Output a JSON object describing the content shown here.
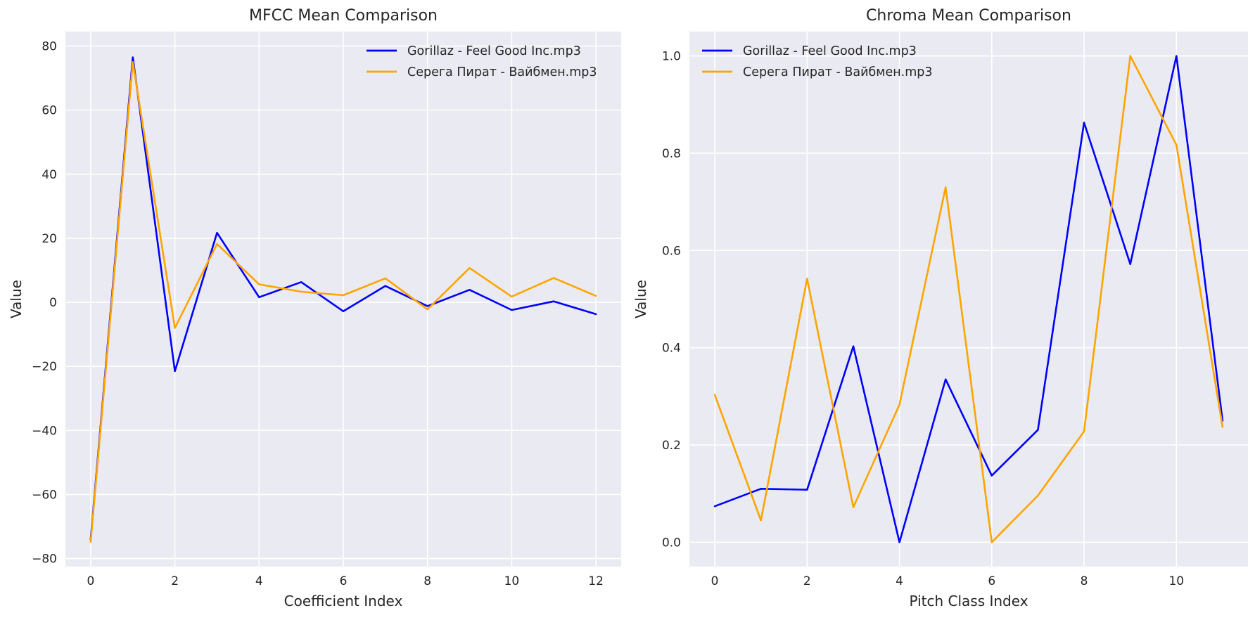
{
  "chart_data": [
    {
      "type": "line",
      "title": "MFCC Mean Comparison",
      "xlabel": "Coefficient Index",
      "ylabel": "Value",
      "xlim": [
        -0.6,
        12.6
      ],
      "ylim": [
        -82.5,
        84.5
      ],
      "xticks": [
        0,
        2,
        4,
        6,
        8,
        10,
        12
      ],
      "xtick_labels": [
        "0",
        "2",
        "4",
        "6",
        "8",
        "10",
        "12"
      ],
      "yticks": [
        -80,
        -60,
        -40,
        -20,
        0,
        20,
        40,
        60,
        80
      ],
      "ytick_labels": [
        "−80",
        "−60",
        "−40",
        "−20",
        "0",
        "20",
        "40",
        "60",
        "80"
      ],
      "grid": true,
      "legend_position": "top-right",
      "x": [
        0,
        1,
        2,
        3,
        4,
        5,
        6,
        7,
        8,
        9,
        10,
        11,
        12
      ],
      "series": [
        {
          "name": "Gorillaz - Feel Good Inc.mp3",
          "color": "#0000ff",
          "values": [
            -74,
            76.5,
            -21.5,
            21.7,
            1.6,
            6.3,
            -2.8,
            5.1,
            -1.2,
            3.9,
            -2.4,
            0.3,
            -3.7
          ]
        },
        {
          "name": "Серега Пират - Вайбмен.mp3",
          "color": "#ffa500",
          "values": [
            -74.8,
            75,
            -8,
            18.2,
            5.6,
            3.3,
            2.2,
            7.5,
            -2.2,
            10.7,
            1.8,
            7.6,
            2
          ]
        }
      ]
    },
    {
      "type": "line",
      "title": "Chroma Mean Comparison",
      "xlabel": "Pitch Class Index",
      "ylabel": "Value",
      "xlim": [
        -0.55,
        11.55
      ],
      "ylim": [
        -0.05,
        1.05
      ],
      "xticks": [
        0,
        2,
        4,
        6,
        8,
        10
      ],
      "xtick_labels": [
        "0",
        "2",
        "4",
        "6",
        "8",
        "10"
      ],
      "yticks": [
        0,
        0.2,
        0.4,
        0.6,
        0.8,
        1.0
      ],
      "ytick_labels": [
        "0.0",
        "0.2",
        "0.4",
        "0.6",
        "0.8",
        "1.0"
      ],
      "grid": true,
      "legend_position": "top-left",
      "x": [
        0,
        1,
        2,
        3,
        4,
        5,
        6,
        7,
        8,
        9,
        10,
        11
      ],
      "series": [
        {
          "name": "Gorillaz - Feel Good Inc.mp3",
          "color": "#0000ff",
          "values": [
            0.074,
            0.11,
            0.108,
            0.403,
            0,
            0.335,
            0.137,
            0.231,
            0.863,
            0.572,
            1.0,
            0.25
          ]
        },
        {
          "name": "Серега Пират - Вайбмен.mp3",
          "color": "#ffa500",
          "values": [
            0.303,
            0.045,
            0.542,
            0.072,
            0.283,
            0.73,
            0,
            0.096,
            0.228,
            1.0,
            0.817,
            0.237
          ]
        }
      ]
    }
  ]
}
